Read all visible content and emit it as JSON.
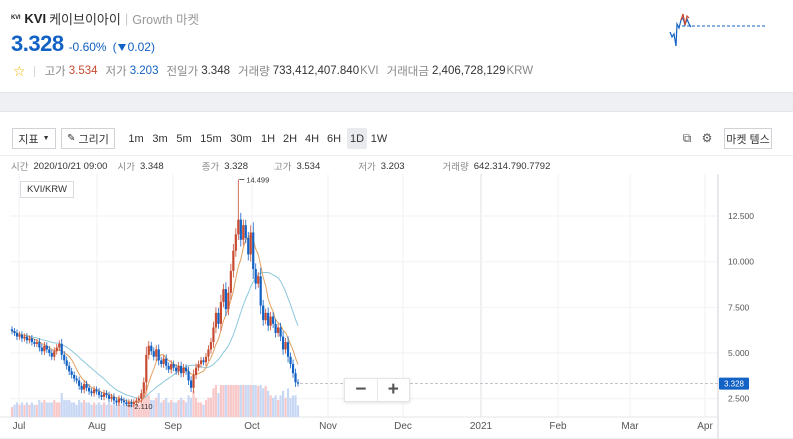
{
  "header": {
    "coin_badge": "KVI",
    "symbol": "KVI",
    "name": "케이브이아이",
    "separator": "|",
    "market_tag": "Growth 마켓",
    "price": "3.328",
    "change_rate": "-0.60%",
    "change_amount": "0.02",
    "stats": [
      {
        "label": "고가",
        "value": "3.534",
        "unit": "",
        "tone": "up"
      },
      {
        "label": "저가",
        "value": "3.203",
        "unit": "",
        "tone": "down"
      },
      {
        "label": "전일가",
        "value": "3.348",
        "unit": "",
        "tone": ""
      },
      {
        "label": "거래량",
        "value": "733,412,407.840",
        "unit": "KVI",
        "tone": ""
      },
      {
        "label": "거래대금",
        "value": "2,406,728,129",
        "unit": "KRW",
        "tone": ""
      }
    ]
  },
  "toolbar": {
    "indicator_label": "지표",
    "draw_label": "그리기",
    "intervals": [
      "1m",
      "3m",
      "5m",
      "15m",
      "30m",
      "1H",
      "2H",
      "4H",
      "6H",
      "1D",
      "1W"
    ],
    "active_interval": "1D",
    "market_theme_label": "마켓 템스"
  },
  "info": {
    "time_label": "시간",
    "time_value": "2020/10/21 09:00",
    "open_label": "시가",
    "open_value": "3.348",
    "close_label": "종가",
    "close_value": "3.328",
    "high_label": "고가",
    "high_value": "3.534",
    "low_label": "저가",
    "low_value": "3.203",
    "volume_label": "거래량",
    "volume_value": "642.314.790.7792"
  },
  "pair_label": "KVI/KRW",
  "zoom": {
    "minus": "−",
    "plus": "+"
  },
  "colors": {
    "up": "#c84a31",
    "down": "#1261c4",
    "ma_short": "#e0a060",
    "ma_long": "#8cc8dc",
    "vol_up": "#f8c8c8",
    "vol_down": "#c8d8f4"
  },
  "chart_data": {
    "type": "candlestick",
    "x_ticks": [
      "Jul",
      "Aug",
      "Sep",
      "Oct",
      "Nov",
      "Dec",
      "2021",
      "Feb",
      "Mar",
      "Apr"
    ],
    "y_ticks": [
      "2.500",
      "5.000",
      "7.500",
      "10.000",
      "12.500"
    ],
    "ylim": [
      1.5,
      14.8
    ],
    "current_price": "3.328",
    "max_annotation": "14.499",
    "min_annotation": "2.110",
    "series": [
      {
        "name": "price",
        "closes": [
          6.2,
          6.1,
          5.9,
          6.0,
          5.8,
          5.9,
          5.7,
          5.8,
          5.6,
          5.5,
          5.6,
          5.3,
          5.1,
          5.4,
          5.2,
          5.0,
          4.8,
          5.1,
          5.3,
          5.5,
          4.9,
          4.6,
          4.3,
          4.0,
          3.8,
          3.6,
          3.5,
          3.2,
          3.0,
          3.3,
          3.1,
          2.9,
          2.8,
          3.0,
          2.9,
          2.7,
          2.6,
          2.8,
          2.7,
          2.5,
          2.6,
          2.4,
          2.3,
          2.5,
          2.4,
          2.3,
          2.2,
          2.3,
          2.2,
          2.3,
          2.4,
          2.5,
          2.8,
          3.4,
          4.9,
          5.4,
          5.1,
          4.8,
          5.2,
          4.6,
          4.4,
          4.7,
          4.3,
          4.1,
          4.4,
          4.2,
          4.0,
          4.3,
          3.9,
          4.2,
          4.0,
          3.5,
          3.1,
          3.8,
          4.2,
          4.4,
          4.6,
          4.5,
          4.8,
          5.2,
          5.6,
          6.4,
          7.2,
          6.6,
          7.8,
          8.5,
          7.4,
          8.3,
          9.5,
          10.6,
          11.5,
          12.3,
          11.2,
          12.0,
          11.3,
          10.4,
          11.6,
          9.6,
          8.8,
          9.2,
          7.6,
          6.8,
          7.2,
          6.5,
          7.0,
          6.6,
          6.1,
          6.4,
          5.9,
          5.2,
          5.6,
          4.8,
          4.4,
          3.9,
          3.4,
          3.33
        ]
      }
    ],
    "ma_short_note": "",
    "ma_long_note": ""
  }
}
